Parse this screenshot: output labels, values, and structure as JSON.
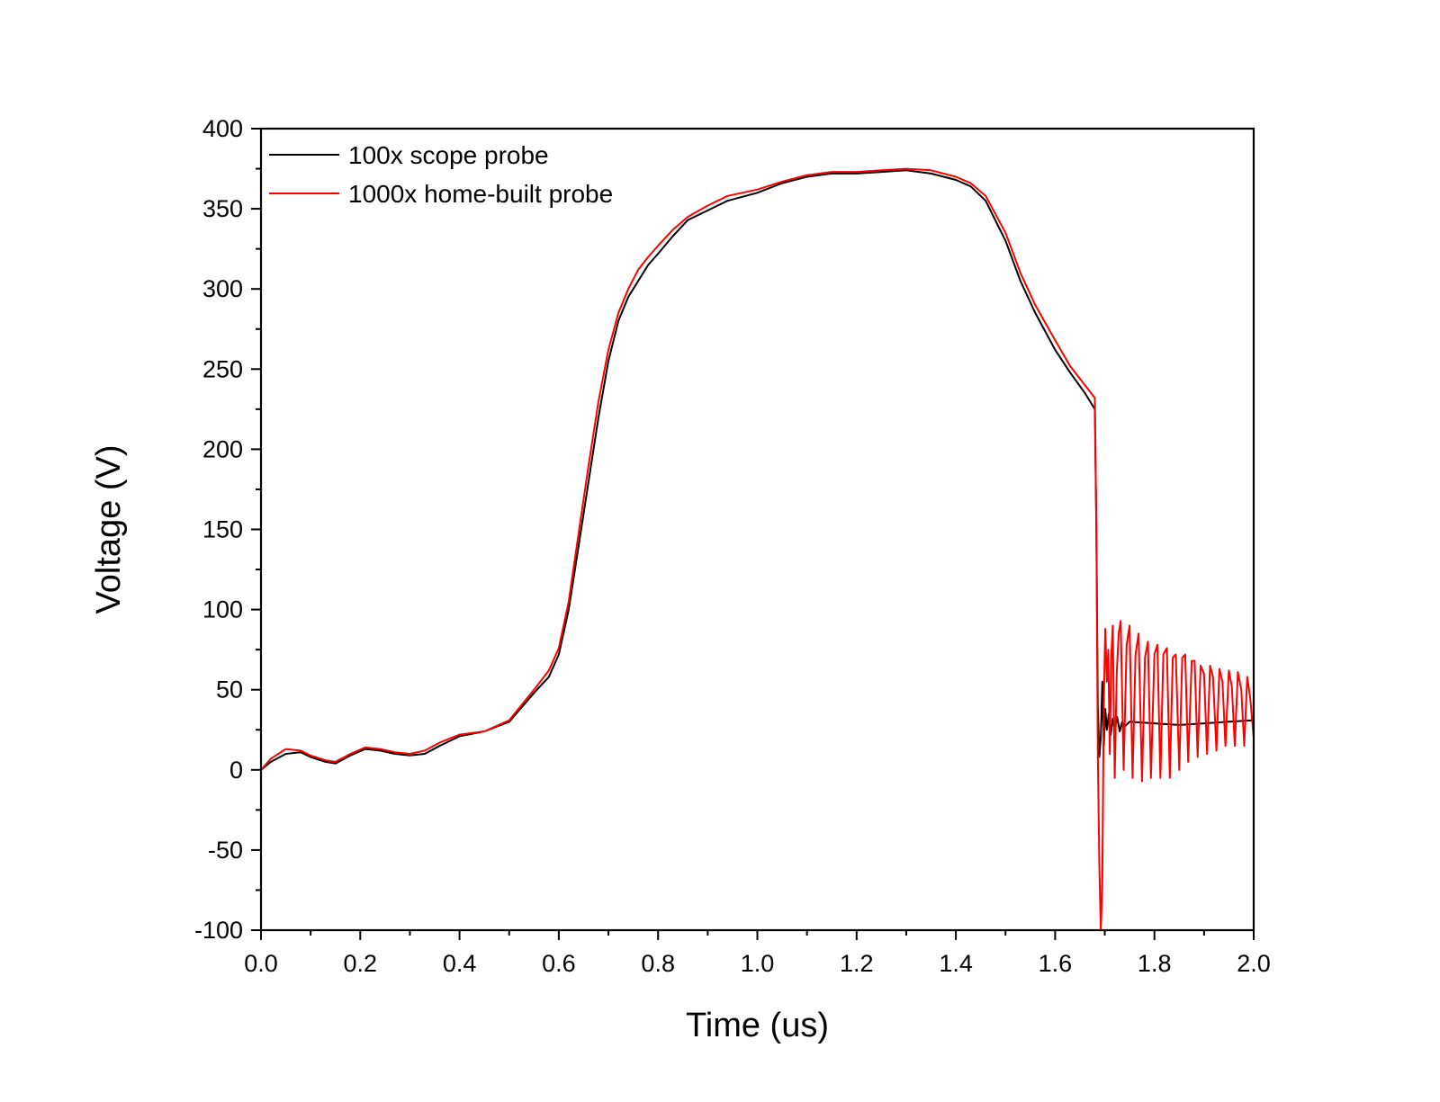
{
  "chart_data": {
    "type": "line",
    "title": "",
    "xlabel": "Time (us)",
    "ylabel": "Voltage (V)",
    "xlim": [
      0.0,
      2.0
    ],
    "ylim": [
      -100,
      400
    ],
    "x_ticks": [
      "0.0",
      "0.2",
      "0.4",
      "0.6",
      "0.8",
      "1.0",
      "1.2",
      "1.4",
      "1.6",
      "1.8",
      "2.0"
    ],
    "y_ticks": [
      "-100",
      "-50",
      "0",
      "50",
      "100",
      "150",
      "200",
      "250",
      "300",
      "350",
      "400"
    ],
    "grid": false,
    "legend_position": "top-left",
    "series": [
      {
        "name": "100x scope probe",
        "color": "#000000",
        "x": [
          0.0,
          0.02,
          0.05,
          0.08,
          0.1,
          0.13,
          0.15,
          0.18,
          0.21,
          0.24,
          0.27,
          0.3,
          0.33,
          0.36,
          0.4,
          0.45,
          0.5,
          0.55,
          0.58,
          0.6,
          0.62,
          0.64,
          0.66,
          0.68,
          0.7,
          0.72,
          0.74,
          0.76,
          0.78,
          0.8,
          0.83,
          0.86,
          0.9,
          0.94,
          1.0,
          1.05,
          1.1,
          1.15,
          1.2,
          1.25,
          1.3,
          1.35,
          1.4,
          1.43,
          1.46,
          1.5,
          1.53,
          1.56,
          1.6,
          1.63,
          1.66,
          1.68,
          1.683,
          1.686,
          1.689,
          1.692,
          1.695,
          1.698,
          1.701,
          1.704,
          1.708,
          1.712,
          1.716,
          1.72,
          1.725,
          1.73,
          1.735,
          1.74,
          1.75,
          1.8,
          1.85,
          1.9,
          1.95,
          2.0
        ],
        "values": [
          0,
          5,
          10,
          11,
          8,
          5,
          4,
          9,
          13,
          12,
          10,
          9,
          10,
          15,
          21,
          24,
          30,
          48,
          58,
          72,
          100,
          140,
          180,
          220,
          255,
          280,
          295,
          305,
          315,
          322,
          333,
          343,
          349,
          355,
          360,
          366,
          370,
          372,
          372,
          373,
          374,
          372,
          368,
          364,
          355,
          330,
          305,
          285,
          262,
          248,
          235,
          225,
          150,
          40,
          8,
          20,
          55,
          15,
          38,
          25,
          35,
          22,
          32,
          25,
          33,
          24,
          30,
          27,
          30,
          29,
          28,
          29,
          30,
          31
        ]
      },
      {
        "name": "1000x home-built probe",
        "color": "#ff0000",
        "x": [
          0.0,
          0.02,
          0.05,
          0.08,
          0.1,
          0.13,
          0.15,
          0.18,
          0.21,
          0.24,
          0.27,
          0.3,
          0.33,
          0.36,
          0.4,
          0.45,
          0.5,
          0.55,
          0.58,
          0.6,
          0.62,
          0.64,
          0.66,
          0.68,
          0.7,
          0.72,
          0.74,
          0.76,
          0.78,
          0.8,
          0.83,
          0.86,
          0.9,
          0.94,
          1.0,
          1.05,
          1.1,
          1.15,
          1.2,
          1.25,
          1.3,
          1.35,
          1.4,
          1.43,
          1.46,
          1.5,
          1.53,
          1.56,
          1.6,
          1.63,
          1.66,
          1.68,
          1.683,
          1.686,
          1.689,
          1.692,
          1.695,
          1.698,
          1.701,
          1.704,
          1.707,
          1.71,
          1.713,
          1.716,
          1.72,
          1.724,
          1.728,
          1.732,
          1.738,
          1.744,
          1.75,
          1.756,
          1.762,
          1.768,
          1.775,
          1.781,
          1.787,
          1.793,
          1.8,
          1.806,
          1.812,
          1.818,
          1.825,
          1.831,
          1.837,
          1.843,
          1.85,
          1.856,
          1.862,
          1.868,
          1.875,
          1.881,
          1.887,
          1.893,
          1.9,
          1.906,
          1.912,
          1.918,
          1.925,
          1.931,
          1.937,
          1.943,
          1.95,
          1.956,
          1.962,
          1.968,
          1.975,
          1.981,
          1.987,
          1.993,
          2.0
        ],
        "values": [
          0,
          7,
          13,
          12,
          9,
          6,
          5,
          10,
          14,
          13,
          11,
          10,
          12,
          17,
          22,
          24,
          31,
          50,
          62,
          76,
          105,
          148,
          190,
          230,
          262,
          285,
          300,
          312,
          320,
          327,
          337,
          345,
          352,
          358,
          362,
          367,
          371,
          373,
          373,
          374,
          375,
          374,
          370,
          366,
          358,
          335,
          310,
          290,
          268,
          252,
          240,
          232,
          150,
          10,
          -60,
          -100,
          -70,
          40,
          88,
          55,
          75,
          10,
          70,
          90,
          -5,
          60,
          85,
          93,
          0,
          78,
          90,
          -5,
          72,
          85,
          -7,
          70,
          80,
          -5,
          72,
          78,
          -5,
          72,
          76,
          -5,
          70,
          72,
          0,
          70,
          72,
          5,
          68,
          68,
          8,
          65,
          60,
          10,
          65,
          58,
          12,
          63,
          55,
          15,
          62,
          52,
          15,
          61,
          50,
          15,
          58,
          45,
          20
        ]
      }
    ]
  }
}
